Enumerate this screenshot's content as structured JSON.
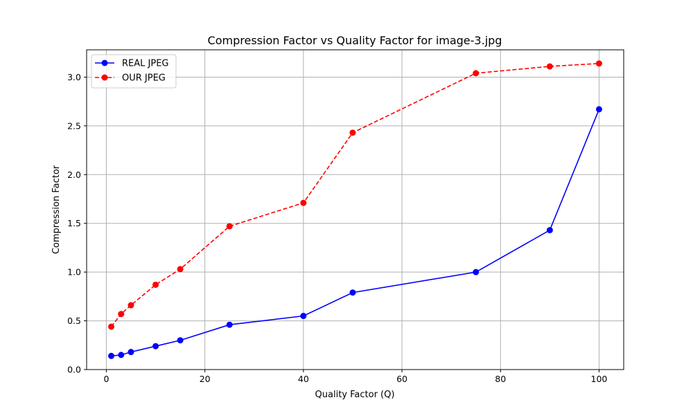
{
  "chart_data": {
    "type": "line",
    "title": "Compression Factor vs Quality Factor for image-3.jpg",
    "xlabel": "Quality Factor (Q)",
    "ylabel": "Compression Factor",
    "xlim": [
      -4,
      105
    ],
    "ylim": [
      0,
      3.28
    ],
    "xticks": [
      0,
      20,
      40,
      60,
      80,
      100
    ],
    "yticks": [
      0.0,
      0.5,
      1.0,
      1.5,
      2.0,
      2.5,
      3.0
    ],
    "grid": true,
    "legend_position": "top-left",
    "x": [
      1,
      3,
      5,
      10,
      15,
      25,
      40,
      50,
      75,
      90,
      100
    ],
    "series": [
      {
        "name": "REAL JPEG",
        "color": "#0000ff",
        "line_style": "solid",
        "marker": "circle",
        "values": [
          0.14,
          0.15,
          0.18,
          0.24,
          0.3,
          0.46,
          0.55,
          0.79,
          1.0,
          1.43,
          2.67
        ]
      },
      {
        "name": "OUR JPEG",
        "color": "#ff0000",
        "line_style": "dashed",
        "marker": "circle",
        "values": [
          0.44,
          0.57,
          0.66,
          0.87,
          1.03,
          1.47,
          1.71,
          2.43,
          3.04,
          3.11,
          3.14
        ]
      }
    ]
  }
}
